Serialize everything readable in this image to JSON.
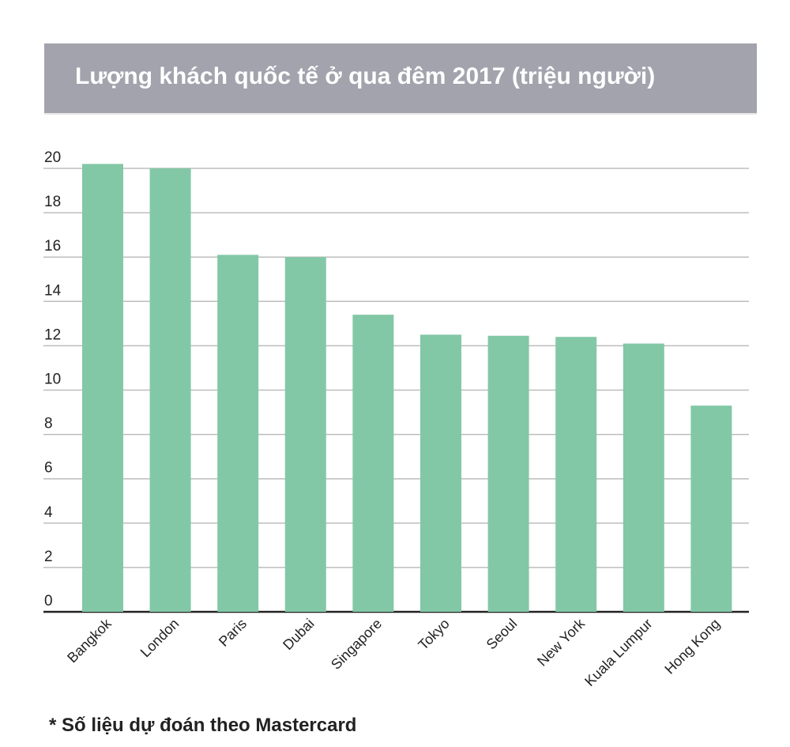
{
  "chart_data": {
    "type": "bar",
    "title": "Lượng khách quốc tế ở qua đêm 2017 (triệu người)",
    "categories": [
      "Bangkok",
      "London",
      "Paris",
      "Dubai",
      "Singapore",
      "Tokyo",
      "Seoul",
      "New York",
      "Kuala Lumpur",
      "Hong Kong"
    ],
    "values": [
      20.2,
      20.0,
      16.1,
      16.0,
      13.4,
      12.5,
      12.45,
      12.4,
      12.1,
      9.3
    ],
    "ylim": [
      0,
      20
    ],
    "yticks": [
      "0",
      "2",
      "4",
      "6",
      "8",
      "10",
      "12",
      "14",
      "16",
      "18",
      "20"
    ],
    "grid": true,
    "bar_color": "#82c8a6",
    "footnote": "* Số liệu dự đoán theo Mastercard"
  }
}
